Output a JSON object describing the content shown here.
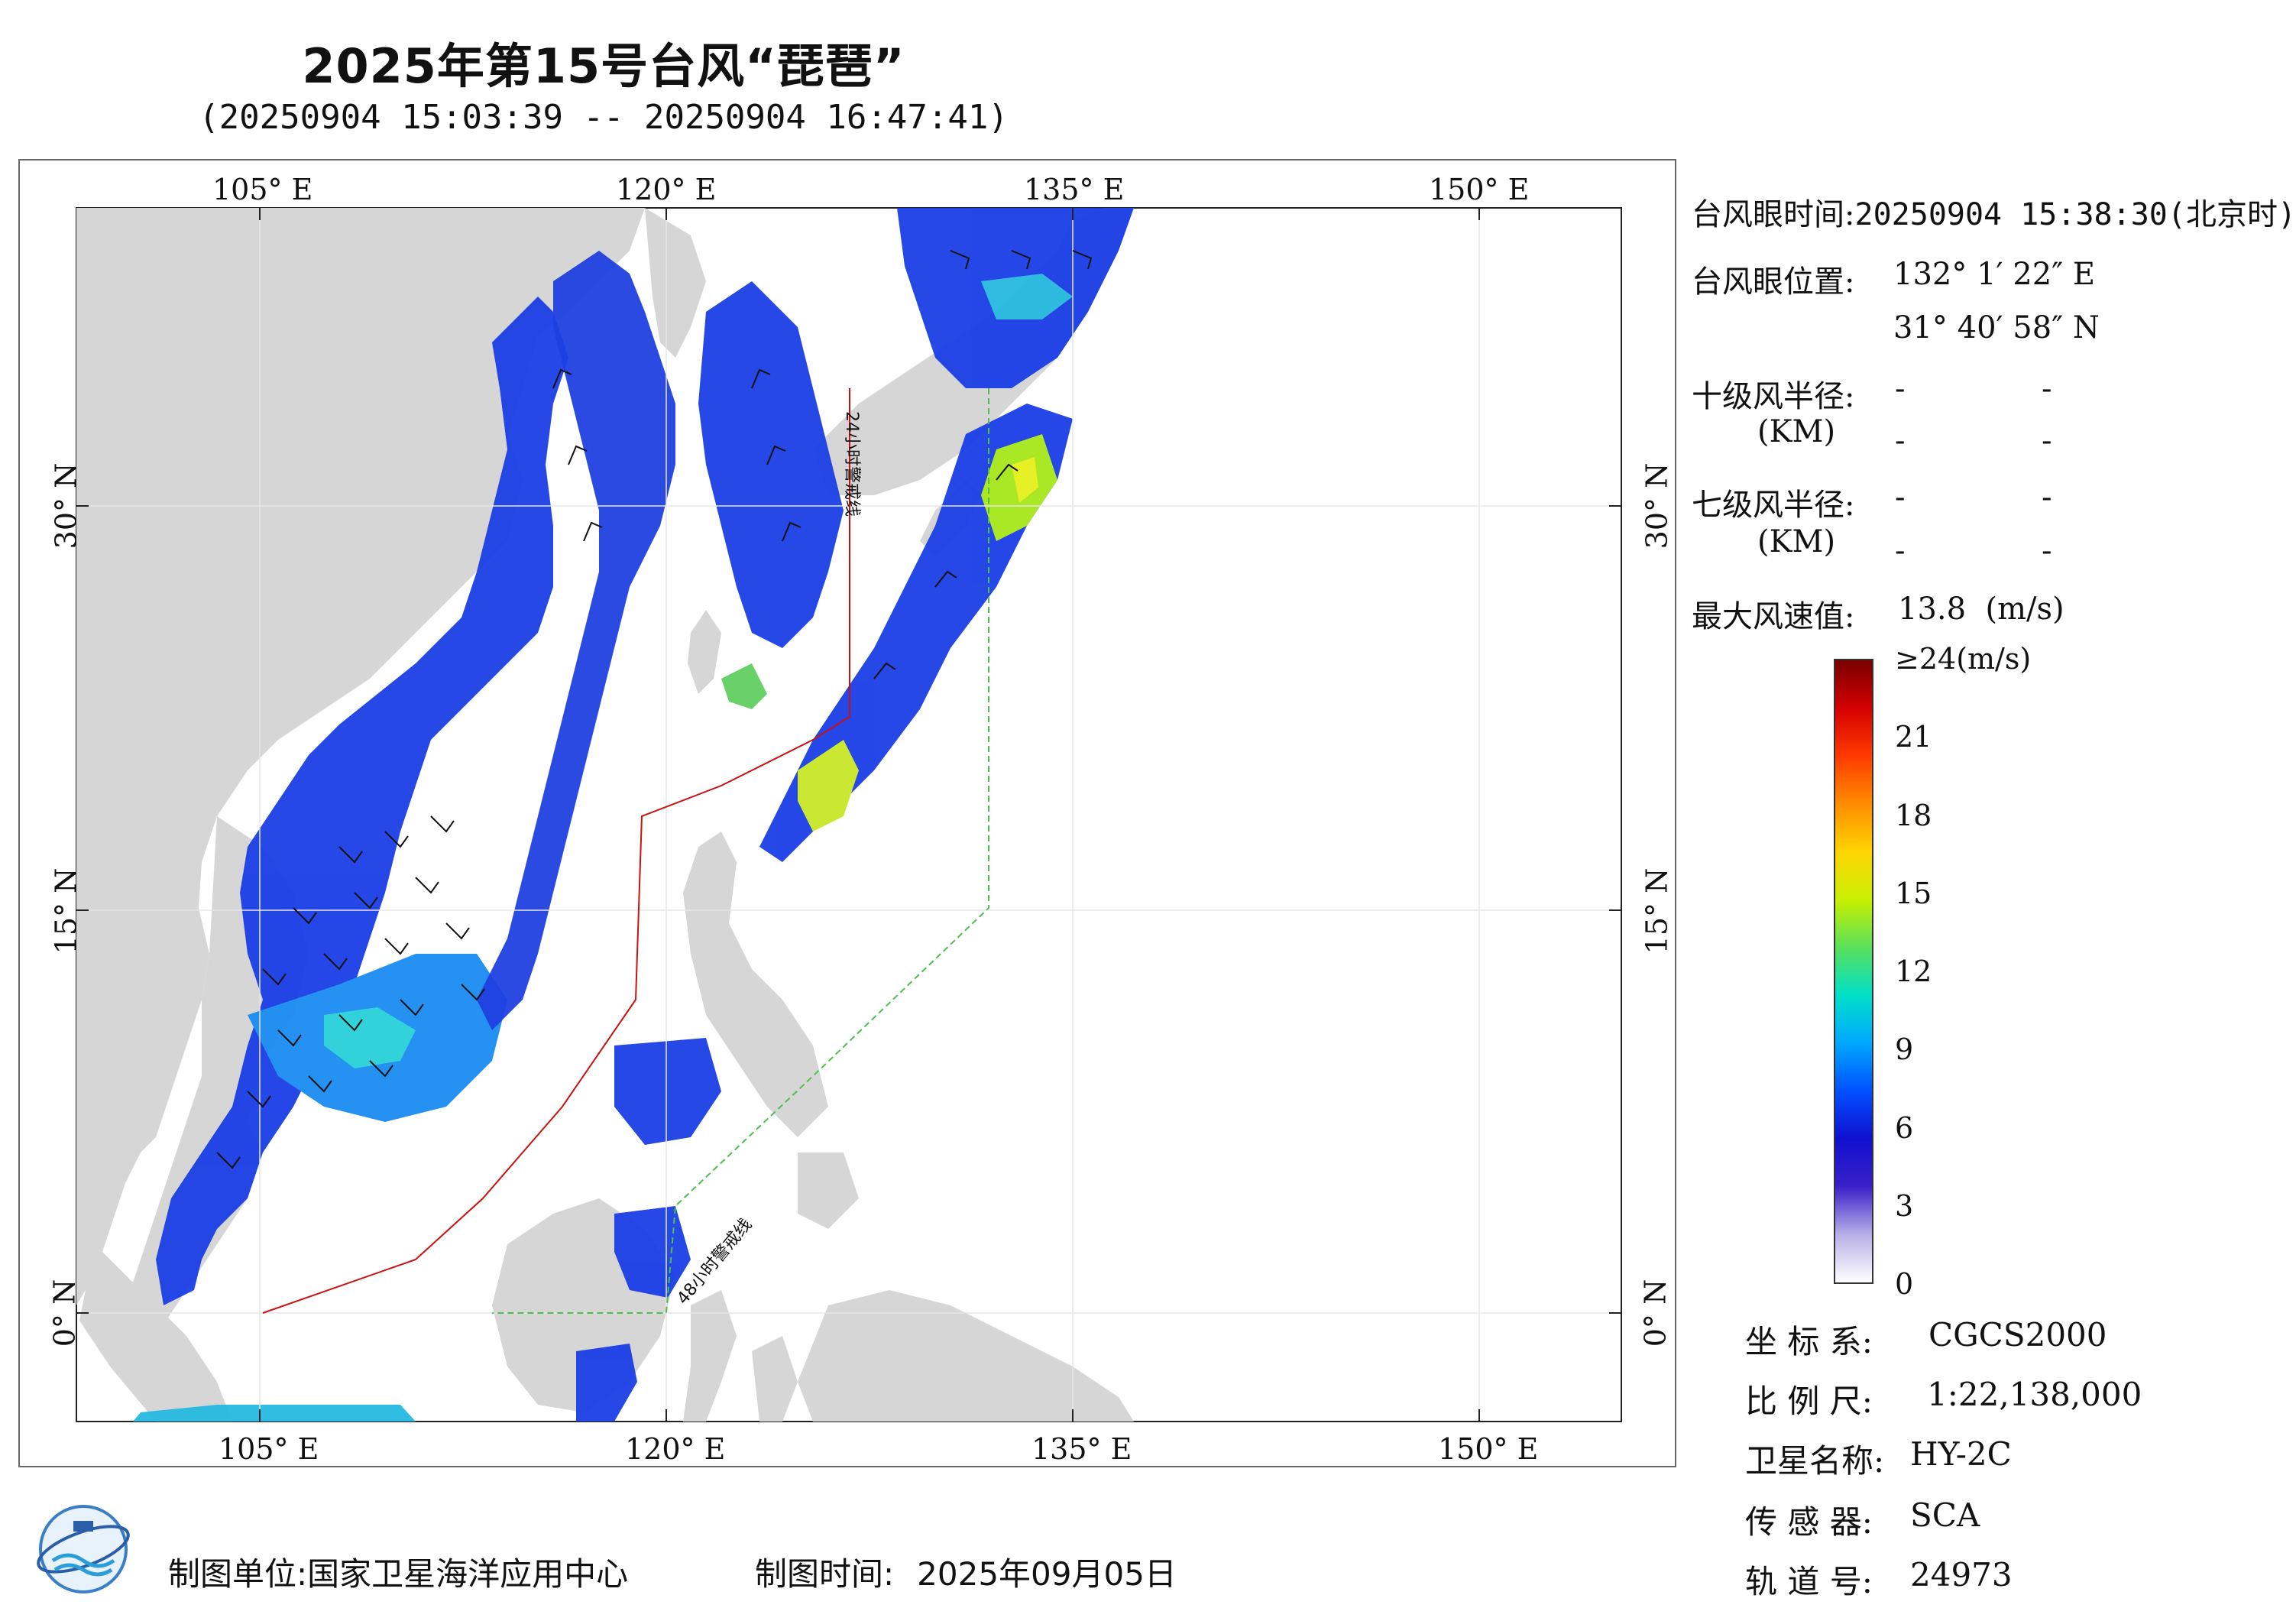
{
  "header": {
    "title": "2025年第15号台风“琵琶”",
    "subtitle": "(20250904 15:03:39 -- 20250904 16:47:41)"
  },
  "axes": {
    "top_labels": [
      "105° E",
      "120° E",
      "135° E",
      "150° E"
    ],
    "bottom_labels": [
      "105° E",
      "120° E",
      "135° E",
      "150° E"
    ],
    "left_labels": [
      "30° N",
      "15° N",
      "0° N"
    ],
    "right_labels": [
      "30° N",
      "15° N",
      "0° N"
    ],
    "lon_values": [
      105,
      120,
      135,
      150
    ],
    "lat_values": [
      30,
      15,
      0
    ]
  },
  "map_labels": {
    "warn24": "24小时警戒线",
    "warn48": "48小时警戒线"
  },
  "info": {
    "eye_time_label": "台风眼时间:",
    "eye_time_value": "20250904 15:38:30(北京时)",
    "eye_pos_label": "台风眼位置:",
    "eye_lon": "132° 1′ 22″ E",
    "eye_lat": "31° 40′ 58″ N",
    "r10_label": "十级风半径:",
    "r10_unit": "(KM)",
    "r7_label": "七级风半径:",
    "r7_unit": "(KM)",
    "dash": "-",
    "max_wind_label": "最大风速值:",
    "max_wind_value": "13.8  (m/s)"
  },
  "colorbar": {
    "ticks": [
      "≥24(m/s)",
      "21",
      "18",
      "15",
      "12",
      "9",
      "6",
      "3",
      "0"
    ],
    "tick_values": [
      24,
      21,
      18,
      15,
      12,
      9,
      6,
      3,
      0
    ],
    "colors": [
      "#7a0000",
      "#d40000",
      "#ff3a00",
      "#ff8c00",
      "#ffd400",
      "#c8f000",
      "#5ae05a",
      "#00e0c8",
      "#00a8ff",
      "#0050ff",
      "#1010d0",
      "#3a20c8",
      "#b8b0e8",
      "#ffffff"
    ]
  },
  "meta": {
    "crs_label": "坐 标 系:",
    "crs_value": "CGCS2000",
    "scale_label": "比 例 尺:",
    "scale_value": "1:22,138,000",
    "sat_label": "卫星名称:",
    "sat_value": "HY-2C",
    "sensor_label": "传 感 器:",
    "sensor_value": "SCA",
    "orbit_label": "轨 道 号:",
    "orbit_value": "24973"
  },
  "footer": {
    "producer_label": "制图单位:",
    "producer_value": "国家卫星海洋应用中心",
    "date_label": "制图时间:",
    "date_value": "2025年09月05日"
  }
}
